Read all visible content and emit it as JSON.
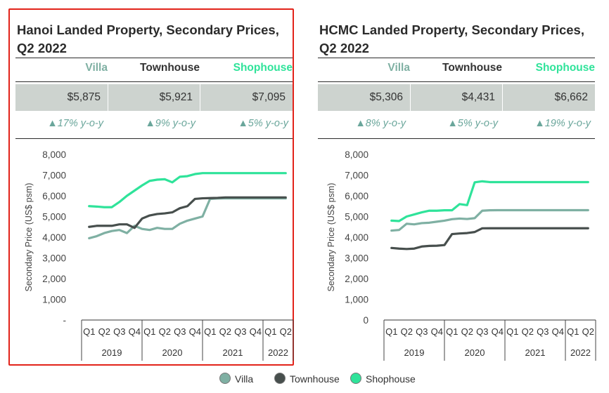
{
  "colors": {
    "villa": "#7fb0a3",
    "townhouse": "#474f4d",
    "shophouse": "#2fe39a",
    "highlight": "#e2231a",
    "band": "#cdd3cf",
    "change": "#6aa69b"
  },
  "legend": [
    {
      "label": "Villa",
      "color": "#7fb0a3"
    },
    {
      "label": "Townhouse",
      "color": "#474f4d"
    },
    {
      "label": "Shophouse",
      "color": "#2fe39a"
    }
  ],
  "panels": [
    {
      "title_line1": "Hanoi Landed Property, Secondary Prices,",
      "title_line2": "Q2 2022",
      "headers": [
        "Villa",
        "Townhouse",
        "Shophouse"
      ],
      "prices": [
        "$5,875",
        "$5,921",
        "$7,095"
      ],
      "changes": [
        "▲17% y-o-y",
        "▲9% y-o-y",
        "▲5% y-o-y"
      ]
    },
    {
      "title_line1": "HCMC Landed Property, Secondary Prices,",
      "title_line2": "Q2 2022",
      "headers": [
        "Villa",
        "Townhouse",
        "Shophouse"
      ],
      "prices": [
        "$5,306",
        "$4,431",
        "$6,662"
      ],
      "changes": [
        "▲8% y-o-y",
        "▲5% y-o-y",
        "▲19% y-o-y"
      ]
    }
  ],
  "chart_data": [
    {
      "type": "line",
      "title": "Hanoi Landed Property, Secondary Prices, Q2 2022",
      "ylabel": "Secondary Price (US$ psm)",
      "ylim": [
        0,
        8000
      ],
      "yticks": [
        "-",
        "1,000",
        "2,000",
        "3,000",
        "4,000",
        "5,000",
        "6,000",
        "7,000",
        "8,000"
      ],
      "categories": [
        "Q1",
        "Q2",
        "Q3",
        "Q4",
        "Q1",
        "Q2",
        "Q3",
        "Q4",
        "Q1",
        "Q2",
        "Q3",
        "Q4",
        "Q1",
        "Q2"
      ],
      "years": [
        {
          "label": "2019",
          "span": 4
        },
        {
          "label": "2020",
          "span": 4
        },
        {
          "label": "2021",
          "span": 4
        },
        {
          "label": "2022",
          "span": 2
        }
      ],
      "x": [
        0,
        0.5,
        1,
        1.5,
        2,
        2.5,
        3,
        3.5,
        4,
        4.5,
        5,
        5.5,
        6,
        6.5,
        7,
        7.5,
        8,
        8.5,
        9,
        9.5,
        10,
        10.5,
        11,
        11.5,
        12,
        12.5,
        13
      ],
      "series": [
        {
          "name": "Villa",
          "values": [
            3950,
            4050,
            4200,
            4300,
            4350,
            4200,
            4550,
            4400,
            4350,
            4450,
            4400,
            4400,
            4650,
            4800,
            4900,
            5000,
            5850,
            5870,
            5875,
            5875,
            5875,
            5875,
            5875,
            5875,
            5875,
            5875,
            5875
          ]
        },
        {
          "name": "Townhouse",
          "values": [
            4500,
            4550,
            4550,
            4550,
            4620,
            4620,
            4450,
            4900,
            5050,
            5120,
            5150,
            5200,
            5400,
            5500,
            5850,
            5880,
            5890,
            5900,
            5921,
            5921,
            5921,
            5921,
            5921,
            5921,
            5921,
            5921,
            5921
          ]
        },
        {
          "name": "Shophouse",
          "values": [
            5500,
            5480,
            5450,
            5450,
            5700,
            6000,
            6250,
            6500,
            6720,
            6780,
            6800,
            6650,
            6920,
            6950,
            7050,
            7095,
            7095,
            7095,
            7095,
            7095,
            7095,
            7095,
            7095,
            7095,
            7095,
            7095,
            7095
          ]
        }
      ]
    },
    {
      "type": "line",
      "title": "HCMC Landed Property, Secondary Prices, Q2 2022",
      "ylabel": "Secondary Price (US$ psm)",
      "ylim": [
        0,
        8000
      ],
      "yticks": [
        "0",
        "1,000",
        "2,000",
        "3,000",
        "4,000",
        "5,000",
        "6,000",
        "7,000",
        "8,000"
      ],
      "categories": [
        "Q1",
        "Q2",
        "Q3",
        "Q4",
        "Q1",
        "Q2",
        "Q3",
        "Q4",
        "Q1",
        "Q2",
        "Q3",
        "Q4",
        "Q1",
        "Q2"
      ],
      "years": [
        {
          "label": "2019",
          "span": 4
        },
        {
          "label": "2020",
          "span": 4
        },
        {
          "label": "2021",
          "span": 4
        },
        {
          "label": "2022",
          "span": 2
        }
      ],
      "x": [
        0,
        0.5,
        1,
        1.5,
        2,
        2.5,
        3,
        3.5,
        4,
        4.5,
        5,
        5.5,
        6,
        6.5,
        7,
        7.5,
        8,
        8.5,
        9,
        9.5,
        10,
        10.5,
        11,
        11.5,
        12,
        12.5,
        13
      ],
      "series": [
        {
          "name": "Villa",
          "values": [
            4320,
            4350,
            4650,
            4620,
            4680,
            4700,
            4750,
            4800,
            4870,
            4900,
            4880,
            4920,
            5280,
            5300,
            5306,
            5306,
            5306,
            5306,
            5306,
            5306,
            5306,
            5306,
            5306,
            5306,
            5306,
            5306,
            5306
          ]
        },
        {
          "name": "Townhouse",
          "values": [
            3480,
            3450,
            3430,
            3450,
            3550,
            3580,
            3590,
            3620,
            4150,
            4180,
            4200,
            4250,
            4430,
            4431,
            4431,
            4431,
            4431,
            4431,
            4431,
            4431,
            4431,
            4431,
            4431,
            4431,
            4431,
            4431,
            4431
          ]
        },
        {
          "name": "Shophouse",
          "values": [
            4800,
            4780,
            5000,
            5100,
            5200,
            5280,
            5280,
            5300,
            5300,
            5600,
            5550,
            6650,
            6700,
            6662,
            6662,
            6662,
            6662,
            6662,
            6662,
            6662,
            6662,
            6662,
            6662,
            6662,
            6662,
            6662,
            6662
          ]
        }
      ]
    }
  ]
}
